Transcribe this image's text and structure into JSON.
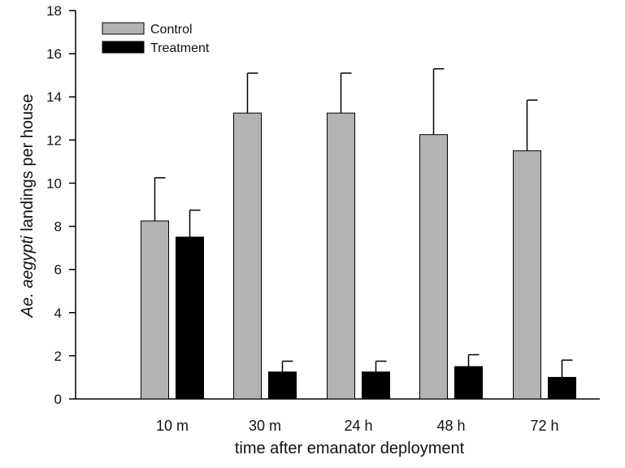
{
  "chart_data": {
    "type": "bar",
    "categories": [
      "10 m",
      "30 m",
      "24 h",
      "48 h",
      "72 h"
    ],
    "series": [
      {
        "name": "Control",
        "color": "#b3b3b3",
        "values": [
          8.25,
          13.25,
          13.25,
          12.25,
          11.5
        ],
        "error": [
          2.0,
          1.85,
          1.85,
          3.05,
          2.35
        ]
      },
      {
        "name": "Treatment",
        "color": "#000000",
        "values": [
          7.5,
          1.25,
          1.25,
          1.5,
          1.0
        ],
        "error": [
          1.25,
          0.5,
          0.5,
          0.55,
          0.8
        ]
      }
    ],
    "xlabel": "time after emanator deployment",
    "ylabel_italic": "Ae. aegypti",
    "ylabel_rest": " landings per house",
    "ylim": [
      0,
      18
    ],
    "yticks": [
      0,
      2,
      4,
      6,
      8,
      10,
      12,
      14,
      16,
      18
    ],
    "legend_position": "top-left",
    "grid": false
  }
}
